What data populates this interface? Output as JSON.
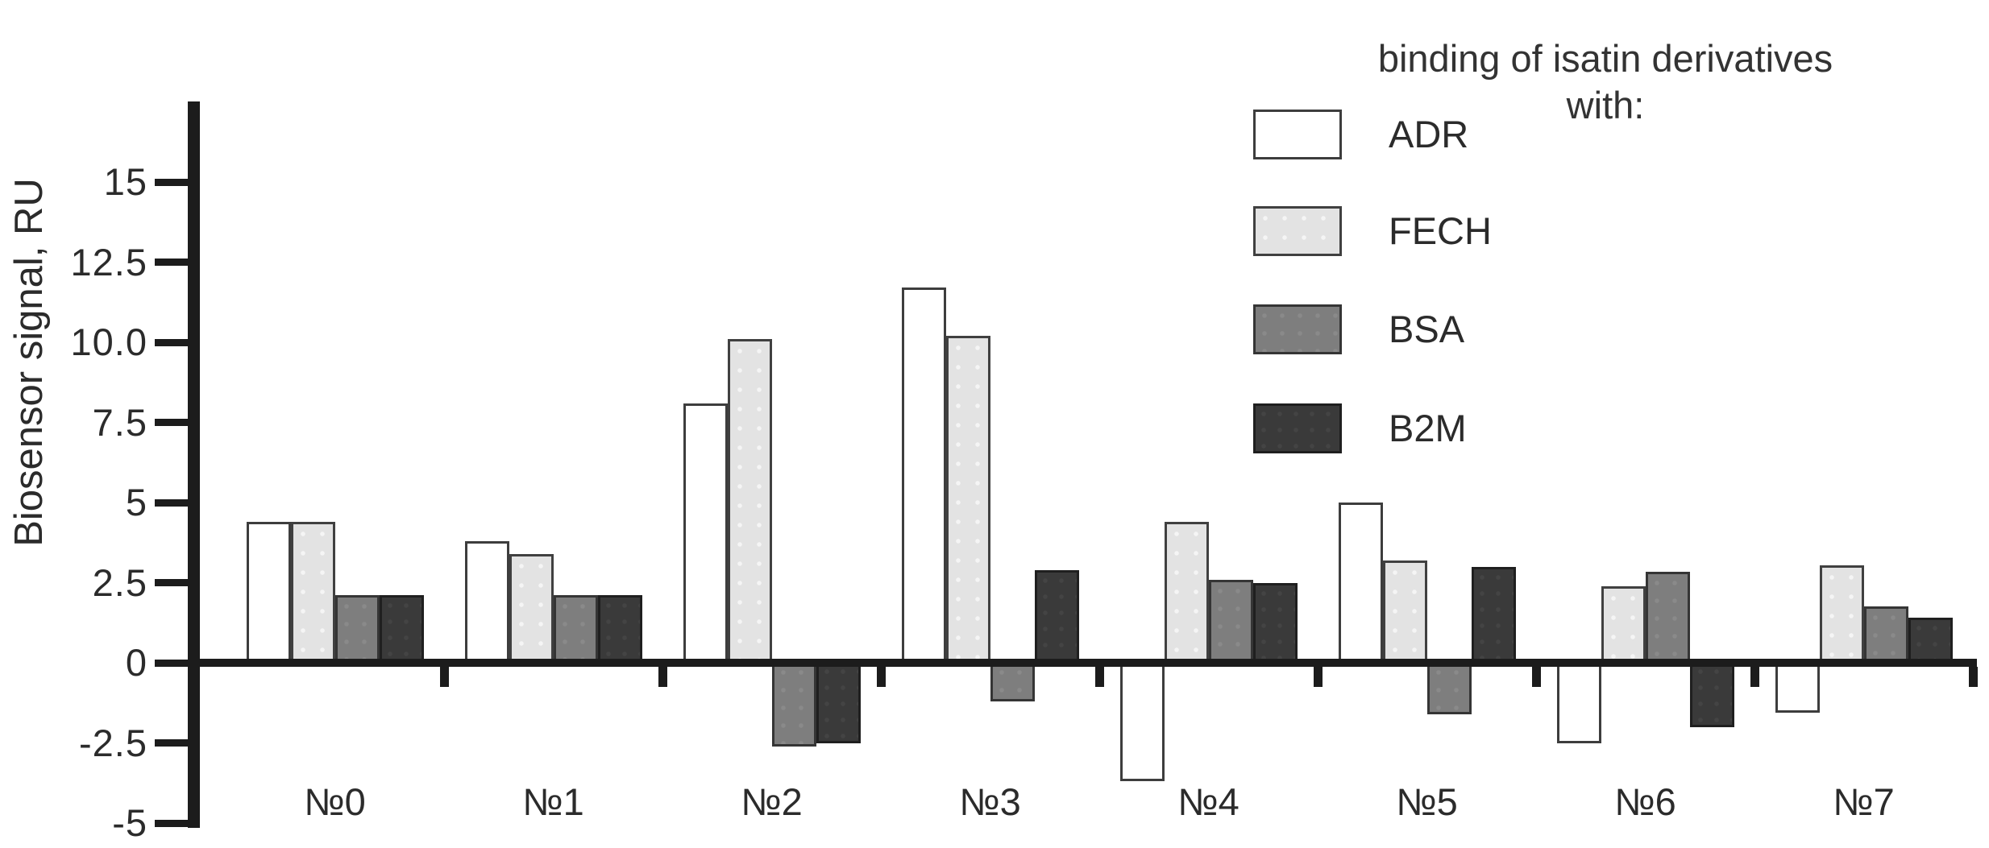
{
  "chart_data": {
    "type": "bar",
    "title": "",
    "ylabel": "Biosensor signal, RU",
    "xlabel": "",
    "grid": false,
    "legend_position": "top-right",
    "ylim": [
      -5,
      17.5
    ],
    "y_ticks": {
      "values": [
        15,
        12.5,
        10.0,
        7.5,
        5,
        2.5,
        0,
        -2.5,
        -5
      ],
      "labels": [
        "15",
        "12.5",
        "10.0",
        "7.5",
        "5",
        "2.5",
        "0",
        "-2.5",
        "-5"
      ]
    },
    "categories": [
      "№0",
      "№1",
      "№2",
      "№3",
      "№4",
      "№5",
      "№6",
      "№7"
    ],
    "series": [
      {
        "name": "ADR",
        "color": "#ffffff",
        "values": [
          4.4,
          3.8,
          8.1,
          11.7,
          -3.7,
          5.0,
          -2.5,
          -1.55
        ]
      },
      {
        "name": "FECH",
        "color": "#e3e3e3",
        "values": [
          4.4,
          3.4,
          10.1,
          10.2,
          4.4,
          3.2,
          2.4,
          3.05
        ]
      },
      {
        "name": "BSA",
        "color": "#7e7e7e",
        "values": [
          2.1,
          2.1,
          -2.6,
          -1.2,
          2.6,
          -1.6,
          2.85,
          1.75
        ]
      },
      {
        "name": "B2M",
        "color": "#3a3a3a",
        "values": [
          2.1,
          2.1,
          -2.5,
          2.9,
          2.5,
          3.0,
          -2.0,
          1.4
        ]
      }
    ]
  },
  "legend": {
    "title_line1": "binding of isatin derivatives",
    "title_line2": "with:",
    "entries": [
      "ADR",
      "FECH",
      "BSA",
      "B2M"
    ]
  },
  "colors": {
    "axis": "#1c1c1c",
    "text": "#2b2b2b",
    "bar_border": "#404040"
  }
}
